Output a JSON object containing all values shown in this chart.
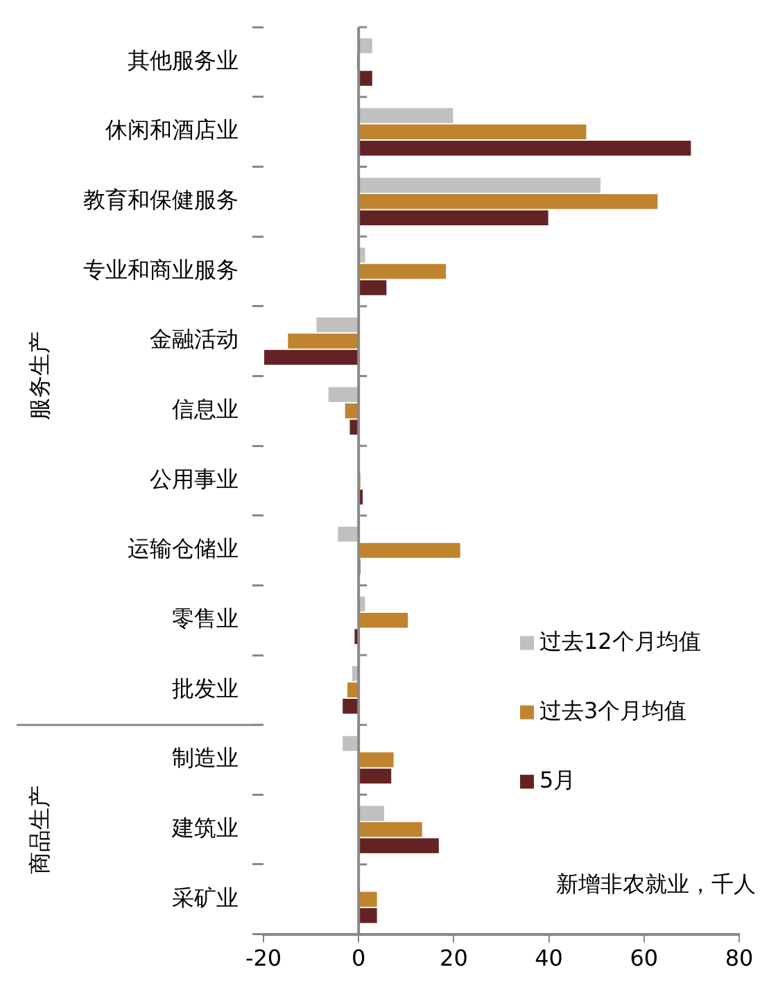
{
  "chart_data": {
    "type": "bar",
    "orientation": "horizontal",
    "categories": [
      "其他服务业",
      "休闲和酒店业",
      "教育和保健服务",
      "专业和商业服务",
      "金融活动",
      "信息业",
      "公用事业",
      "运输仓储业",
      "零售业",
      "批发业",
      "制造业",
      "建筑业",
      "采矿业"
    ],
    "series": [
      {
        "name": "过去12个月均值",
        "color": "#c0c0c0",
        "values": [
          3,
          20,
          51,
          1.5,
          -9,
          -6.5,
          0,
          -4.5,
          1.5,
          -1.5,
          -3.5,
          5.5,
          0
        ]
      },
      {
        "name": "过去3个月均值",
        "color": "#c0842f",
        "values": [
          -0.5,
          48,
          63,
          18.5,
          -15,
          -3,
          0.5,
          21.5,
          10.5,
          -2.5,
          7.5,
          13.5,
          4
        ]
      },
      {
        "name": "5月",
        "color": "#632324",
        "values": [
          3,
          70,
          40,
          6,
          -20,
          -2,
          1,
          0.5,
          -1,
          -3.5,
          7,
          17,
          4
        ]
      }
    ],
    "xlim": [
      -20,
      80
    ],
    "xticks": [
      -20,
      0,
      20,
      40,
      60,
      80
    ],
    "legend": "bottom right",
    "grid": false,
    "ref_lines": [
      {
        "axis": "x",
        "value": 0,
        "color": "#888888"
      }
    ],
    "annotations": [
      "服务生产",
      "商品生产",
      "新增非农就业，千人"
    ]
  }
}
